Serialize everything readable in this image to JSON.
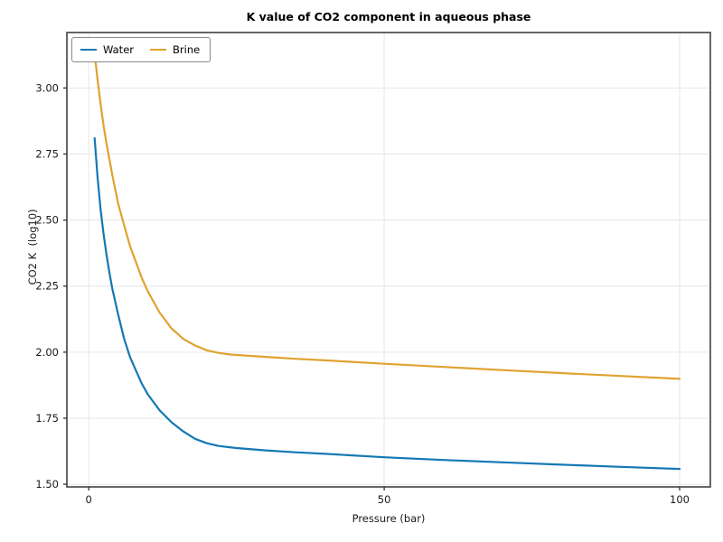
{
  "chart_data": {
    "type": "line",
    "title": "K value of CO2 component in aqueous phase",
    "xlabel": "Pressure (bar)",
    "ylabel": "CO2 K  (log10)",
    "grid": true,
    "legend_position": "upper left horizontal",
    "xlim": [
      -3.7,
      105.2
    ],
    "ylim": [
      1.49,
      3.21
    ],
    "xticks": [
      {
        "value": 0,
        "label": "0"
      },
      {
        "value": 50,
        "label": "50"
      },
      {
        "value": 100,
        "label": "100"
      }
    ],
    "yticks": [
      {
        "value": 1.5,
        "label": "1.50"
      },
      {
        "value": 1.75,
        "label": "1.75"
      },
      {
        "value": 2.0,
        "label": "2.00"
      },
      {
        "value": 2.25,
        "label": "2.25"
      },
      {
        "value": 2.5,
        "label": "2.50"
      },
      {
        "value": 2.75,
        "label": "2.75"
      },
      {
        "value": 3.0,
        "label": "3.00"
      }
    ],
    "colors": {
      "grid": "#e6e6e6",
      "spine": "#555555",
      "text": "#1a1a1a",
      "legend_border": "#8a8a8a"
    },
    "series": [
      {
        "name": "Water",
        "color": "#1478b4",
        "x": [
          1,
          1.5,
          2,
          2.5,
          3,
          3.5,
          4,
          5,
          6,
          7,
          8,
          9,
          10,
          12,
          14,
          16,
          18,
          20,
          22,
          25,
          30,
          35,
          40,
          50,
          60,
          70,
          80,
          90,
          100
        ],
        "y": [
          2.81,
          2.66,
          2.54,
          2.45,
          2.37,
          2.3,
          2.24,
          2.14,
          2.05,
          1.98,
          1.93,
          1.88,
          1.84,
          1.78,
          1.735,
          1.7,
          1.672,
          1.655,
          1.645,
          1.637,
          1.628,
          1.621,
          1.615,
          1.602,
          1.592,
          1.583,
          1.574,
          1.566,
          1.558
        ]
      },
      {
        "name": "Brine",
        "color": "#e0a230",
        "x": [
          1,
          1.5,
          2,
          2.5,
          3,
          3.5,
          4,
          5,
          6,
          7,
          8,
          9,
          10,
          12,
          14,
          16,
          18,
          20,
          22,
          24,
          26,
          30,
          35,
          40,
          50,
          60,
          70,
          80,
          90,
          100
        ],
        "y": [
          3.13,
          3.03,
          2.94,
          2.86,
          2.79,
          2.73,
          2.67,
          2.56,
          2.48,
          2.4,
          2.34,
          2.28,
          2.23,
          2.15,
          2.09,
          2.05,
          2.025,
          2.007,
          1.997,
          1.991,
          1.988,
          1.982,
          1.975,
          1.969,
          1.956,
          1.944,
          1.932,
          1.921,
          1.91,
          1.899
        ]
      }
    ]
  }
}
